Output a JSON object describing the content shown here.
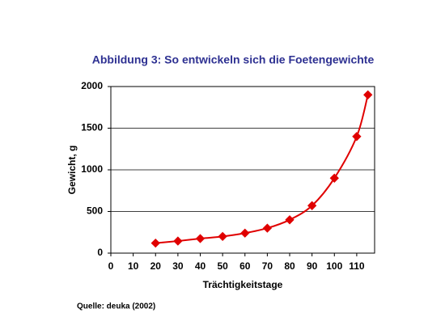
{
  "chart_data": {
    "type": "line",
    "title": "Abbildung 3: So entwickeln sich die Foetengewichte",
    "x_label": "Trächtigkeitstage",
    "y_label": "Gewicht, g",
    "source": "Quelle: deuka (2002)",
    "x": [
      20,
      30,
      40,
      50,
      60,
      70,
      80,
      90,
      100,
      110,
      115
    ],
    "values": [
      120,
      145,
      175,
      200,
      240,
      300,
      400,
      570,
      900,
      1400,
      1900
    ],
    "color": "#e00000",
    "xlim": [
      0,
      118
    ],
    "xticks": [
      0,
      10,
      20,
      30,
      40,
      50,
      60,
      70,
      80,
      90,
      100,
      110
    ],
    "ylim": [
      0,
      2000
    ],
    "yticks": [
      0,
      500,
      1000,
      1500,
      2000
    ],
    "grid": true
  }
}
